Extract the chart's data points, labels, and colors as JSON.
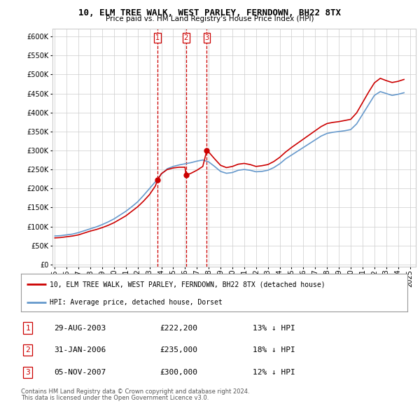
{
  "title": "10, ELM TREE WALK, WEST PARLEY, FERNDOWN, BH22 8TX",
  "subtitle": "Price paid vs. HM Land Registry's House Price Index (HPI)",
  "ylabel_ticks": [
    0,
    50000,
    100000,
    150000,
    200000,
    250000,
    300000,
    350000,
    400000,
    450000,
    500000,
    550000,
    600000
  ],
  "ylim": [
    -5000,
    620000
  ],
  "xlim_start": 1994.8,
  "xlim_end": 2025.5,
  "sale_dates": [
    2003.66,
    2006.08,
    2007.84
  ],
  "sale_prices": [
    222200,
    235000,
    300000
  ],
  "sale_labels": [
    "1",
    "2",
    "3"
  ],
  "sale_date_strs": [
    "29-AUG-2003",
    "31-JAN-2006",
    "05-NOV-2007"
  ],
  "sale_price_strs": [
    "£222,200",
    "£235,000",
    "£300,000"
  ],
  "sale_hpi_strs": [
    "13% ↓ HPI",
    "18% ↓ HPI",
    "12% ↓ HPI"
  ],
  "hpi_years": [
    1995.0,
    1995.5,
    1996.0,
    1996.5,
    1997.0,
    1997.5,
    1998.0,
    1998.5,
    1999.0,
    1999.5,
    2000.0,
    2000.5,
    2001.0,
    2001.5,
    2002.0,
    2002.5,
    2003.0,
    2003.5,
    2004.0,
    2004.5,
    2005.0,
    2005.5,
    2006.0,
    2006.5,
    2007.0,
    2007.5,
    2008.0,
    2008.5,
    2009.0,
    2009.5,
    2010.0,
    2010.5,
    2011.0,
    2011.5,
    2012.0,
    2012.5,
    2013.0,
    2013.5,
    2014.0,
    2014.5,
    2015.0,
    2015.5,
    2016.0,
    2016.5,
    2017.0,
    2017.5,
    2018.0,
    2018.5,
    2019.0,
    2019.5,
    2020.0,
    2020.5,
    2021.0,
    2021.5,
    2022.0,
    2022.5,
    2023.0,
    2023.5,
    2024.0,
    2024.5
  ],
  "hpi_values": [
    75000,
    76000,
    78000,
    80000,
    84000,
    89000,
    94000,
    99000,
    105000,
    112000,
    120000,
    130000,
    140000,
    152000,
    165000,
    182000,
    200000,
    218000,
    238000,
    252000,
    258000,
    262000,
    265000,
    268000,
    272000,
    275000,
    270000,
    258000,
    245000,
    240000,
    242000,
    248000,
    250000,
    248000,
    244000,
    245000,
    248000,
    255000,
    265000,
    278000,
    288000,
    298000,
    308000,
    318000,
    328000,
    338000,
    345000,
    348000,
    350000,
    352000,
    355000,
    370000,
    395000,
    420000,
    445000,
    455000,
    450000,
    445000,
    448000,
    452000
  ],
  "red_line_years": [
    1995.0,
    1995.5,
    1996.0,
    1996.5,
    1997.0,
    1997.5,
    1998.0,
    1998.5,
    1999.0,
    1999.5,
    2000.0,
    2000.5,
    2001.0,
    2001.5,
    2002.0,
    2002.5,
    2003.0,
    2003.5,
    2003.66,
    2003.67,
    2004.0,
    2004.5,
    2005.0,
    2005.5,
    2006.0,
    2006.08,
    2006.09,
    2006.5,
    2007.0,
    2007.5,
    2007.84,
    2007.85,
    2008.0,
    2008.5,
    2009.0,
    2009.5,
    2010.0,
    2010.5,
    2011.0,
    2011.5,
    2012.0,
    2012.5,
    2013.0,
    2013.5,
    2014.0,
    2014.5,
    2015.0,
    2015.5,
    2016.0,
    2016.5,
    2017.0,
    2017.5,
    2018.0,
    2018.5,
    2019.0,
    2019.5,
    2020.0,
    2020.5,
    2021.0,
    2021.5,
    2022.0,
    2022.5,
    2023.0,
    2023.5,
    2024.0,
    2024.5
  ],
  "red_line_values": [
    70000,
    71000,
    73000,
    75000,
    78000,
    83000,
    88000,
    92000,
    97000,
    103000,
    110000,
    119000,
    128000,
    140000,
    152000,
    167000,
    184000,
    207000,
    222200,
    222200,
    239000,
    250000,
    254000,
    256000,
    256000,
    235000,
    235000,
    240000,
    248000,
    258000,
    300000,
    300000,
    296000,
    278000,
    261000,
    255000,
    258000,
    264000,
    266000,
    263000,
    258000,
    260000,
    263000,
    271000,
    282000,
    296000,
    308000,
    319000,
    330000,
    341000,
    352000,
    363000,
    371000,
    374000,
    376000,
    379000,
    382000,
    399000,
    426000,
    453000,
    478000,
    490000,
    484000,
    479000,
    482000,
    487000
  ],
  "legend_red_label": "10, ELM TREE WALK, WEST PARLEY, FERNDOWN, BH22 8TX (detached house)",
  "legend_blue_label": "HPI: Average price, detached house, Dorset",
  "footer1": "Contains HM Land Registry data © Crown copyright and database right 2024.",
  "footer2": "This data is licensed under the Open Government Licence v3.0.",
  "red_color": "#cc0000",
  "blue_color": "#6699cc",
  "vline_color": "#cc0000",
  "grid_color": "#cccccc",
  "bg_color": "#ffffff",
  "marker_box_color": "#cc0000",
  "title_fontsize": 9,
  "subtitle_fontsize": 7.5,
  "tick_fontsize": 7,
  "legend_fontsize": 7,
  "table_fontsize": 8,
  "footer_fontsize": 6
}
